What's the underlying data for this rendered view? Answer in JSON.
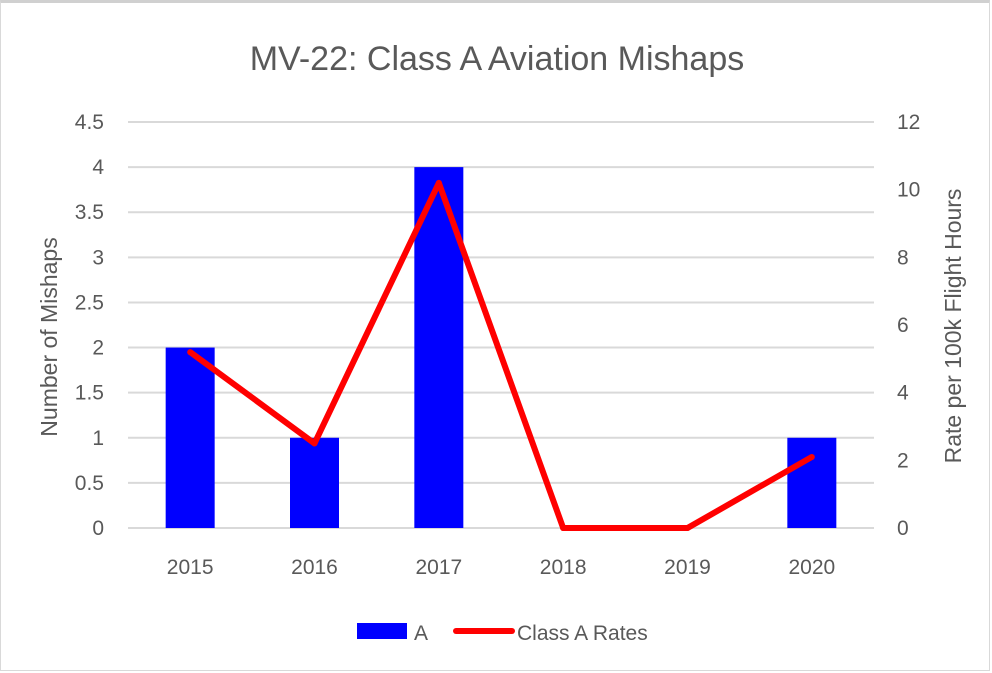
{
  "chart_data": {
    "type": "bar",
    "title": "MV-22: Class A Aviation Mishaps",
    "categories": [
      "2015",
      "2016",
      "2017",
      "2018",
      "2019",
      "2020"
    ],
    "series": [
      {
        "name": "A",
        "type": "bar",
        "axis": "left",
        "color": "#0000ff",
        "values": [
          2,
          1,
          4,
          0,
          0,
          1
        ]
      },
      {
        "name": "Class A Rates",
        "type": "line",
        "axis": "right",
        "color": "#ff0000",
        "values": [
          5.2,
          2.5,
          10.2,
          0,
          0,
          2.1
        ]
      }
    ],
    "ylabel": "Number of Mishaps",
    "y2label": "Rate per 100k Flight Hours",
    "ylim": [
      0,
      4.5
    ],
    "y2lim": [
      0,
      12
    ],
    "yticks": [
      "0",
      "0.5",
      "1",
      "1.5",
      "2",
      "2.5",
      "3",
      "3.5",
      "4",
      "4.5"
    ],
    "y2ticks": [
      "0",
      "2",
      "4",
      "6",
      "8",
      "10",
      "12"
    ],
    "grid": true,
    "legend": "bottom"
  }
}
